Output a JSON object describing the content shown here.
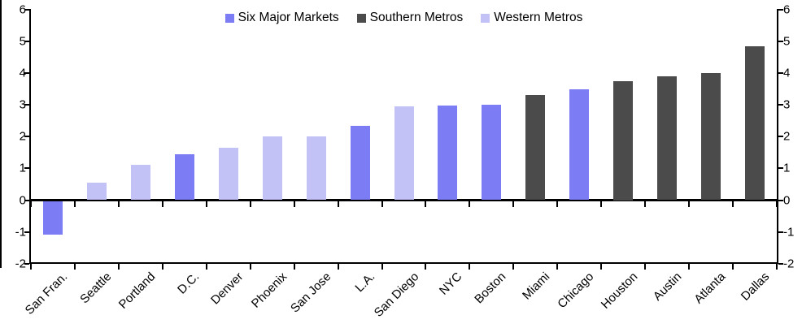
{
  "chart_data": {
    "type": "bar",
    "title": "",
    "legend_position": "top-center",
    "grid": false,
    "y_axis_sides": "both",
    "ylim": [
      -2,
      6
    ],
    "yticks": [
      6,
      5,
      4,
      3,
      2,
      1,
      0,
      -1,
      -2
    ],
    "legend": [
      {
        "name": "Six Major Markets",
        "key": "six_major",
        "color": "#7C7CF5"
      },
      {
        "name": "Southern Metros",
        "key": "southern",
        "color": "#4B4B4B"
      },
      {
        "name": "Western Metros",
        "key": "western",
        "color": "#C2C2F7"
      }
    ],
    "categories": [
      "San Fran.",
      "Seattle",
      "Portland",
      "D.C.",
      "Denver",
      "Phoenix",
      "San Jose",
      "L.A.",
      "San Diego",
      "NYC",
      "Boston",
      "Miami",
      "Chicago",
      "Houston",
      "Austin",
      "Atlanta",
      "Dallas"
    ],
    "values": [
      -1.05,
      0.55,
      1.1,
      1.45,
      1.65,
      2.0,
      2.0,
      2.35,
      2.95,
      2.97,
      3.0,
      3.3,
      3.5,
      3.75,
      3.9,
      4.0,
      4.85
    ],
    "group_keys": [
      "six_major",
      "western",
      "western",
      "six_major",
      "western",
      "western",
      "western",
      "six_major",
      "western",
      "six_major",
      "six_major",
      "southern",
      "six_major",
      "southern",
      "southern",
      "southern",
      "southern"
    ]
  }
}
